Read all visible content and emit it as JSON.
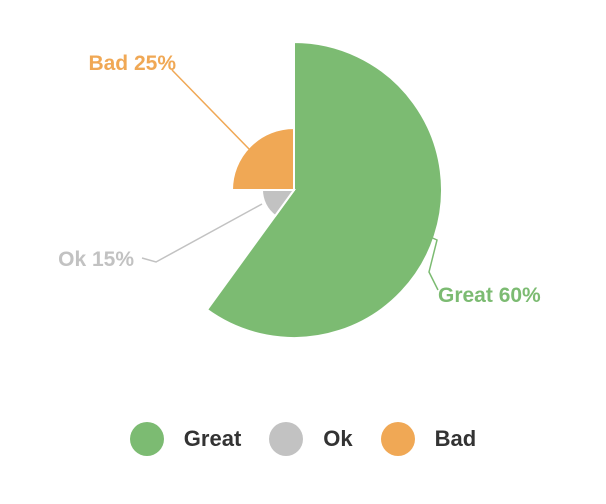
{
  "chart_data": {
    "type": "pie",
    "variant": "variable-radius",
    "title": "",
    "categories": [
      "Great",
      "Ok",
      "Bad"
    ],
    "values": [
      60,
      15,
      25
    ],
    "value_labels": [
      "Great 60%",
      "Ok 15%",
      "Bad 25%"
    ],
    "colors": [
      "#7cbb72",
      "#c2c2c2",
      "#f0a855"
    ],
    "legend_position": "bottom"
  }
}
